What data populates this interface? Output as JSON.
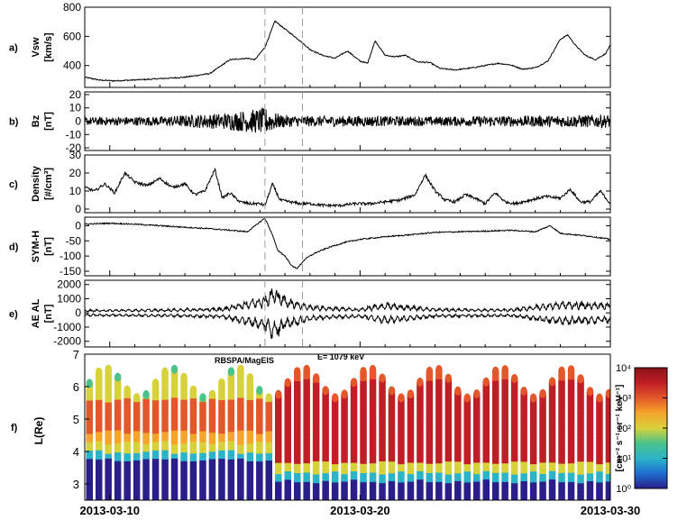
{
  "chart_data": [
    {
      "type": "line",
      "panel_label": "a)",
      "ylabel": [
        "Vsw",
        "[km/s]"
      ],
      "ylim": [
        250,
        800
      ],
      "yticks": [
        400,
        600,
        800
      ],
      "x": [
        9.0,
        9.6,
        10.2,
        11.5,
        13.0,
        14.0,
        14.8,
        15.5,
        15.8,
        16.2,
        16.6,
        17.0,
        17.3,
        17.6,
        18.0,
        18.5,
        19.0,
        19.5,
        20.0,
        20.3,
        20.6,
        21.0,
        21.4,
        21.8,
        22.3,
        22.8,
        23.2,
        23.8,
        24.5,
        25.0,
        25.5,
        26.0,
        26.5,
        27.0,
        27.5,
        28.0,
        28.3,
        28.6,
        29.0,
        29.4,
        29.8,
        30.0
      ],
      "values": [
        320,
        300,
        295,
        305,
        320,
        345,
        440,
        450,
        440,
        525,
        705,
        650,
        610,
        570,
        510,
        470,
        450,
        500,
        430,
        415,
        570,
        470,
        460,
        470,
        425,
        420,
        380,
        370,
        385,
        400,
        415,
        405,
        375,
        385,
        430,
        580,
        610,
        540,
        470,
        440,
        480,
        540
      ]
    },
    {
      "type": "line",
      "panel_label": "b)",
      "ylabel": [
        "Bz",
        "[nT]"
      ],
      "ylim": [
        -22,
        22
      ],
      "yticks": [
        -20,
        -10,
        0,
        10,
        20
      ],
      "series_profile": {
        "x": [
          9,
          12,
          14.5,
          16.2,
          16.8,
          17.5,
          20,
          23,
          26,
          30
        ],
        "amplitude": [
          3,
          3.5,
          6,
          10,
          5,
          4,
          4,
          3.5,
          4,
          5
        ]
      }
    },
    {
      "type": "line",
      "panel_label": "c)",
      "ylabel": [
        "Density",
        "[#/cm³]"
      ],
      "ylim": [
        -2,
        30
      ],
      "yticks": [
        0,
        10,
        20,
        30
      ],
      "x": [
        9.0,
        9.4,
        9.8,
        10.2,
        10.6,
        11.0,
        11.5,
        12.0,
        12.5,
        13.0,
        13.4,
        13.8,
        14.2,
        14.5,
        14.8,
        15.2,
        15.6,
        16.0,
        16.2,
        16.5,
        16.8,
        17.2,
        17.6,
        18.0,
        18.6,
        19.2,
        19.8,
        20.4,
        21.0,
        21.6,
        22.2,
        22.6,
        23.0,
        23.4,
        23.8,
        24.2,
        24.6,
        25.0,
        25.4,
        25.8,
        26.2,
        26.8,
        27.4,
        28.0,
        28.4,
        28.8,
        29.2,
        29.6,
        30.0
      ],
      "values": [
        12,
        10,
        14,
        9,
        20,
        15,
        13,
        17,
        12,
        14,
        8,
        10,
        22,
        6,
        9,
        4,
        3,
        3,
        2,
        14,
        5,
        4,
        3,
        3,
        2,
        2,
        3,
        3,
        4,
        5,
        8,
        19,
        10,
        5,
        4,
        8,
        6,
        3,
        9,
        4,
        3,
        5,
        7,
        6,
        11,
        4,
        4,
        10,
        3
      ]
    },
    {
      "type": "line",
      "panel_label": "d)",
      "ylabel": [
        "SYM-H",
        "[nT]"
      ],
      "ylim": [
        -165,
        28
      ],
      "yticks": [
        -150,
        -100,
        -50,
        0
      ],
      "x": [
        9.0,
        10.0,
        11.0,
        12.0,
        13.0,
        14.0,
        14.8,
        15.5,
        16.2,
        16.5,
        16.7,
        17.0,
        17.3,
        17.5,
        17.8,
        18.2,
        18.8,
        19.4,
        20.0,
        20.6,
        21.2,
        22.0,
        23.0,
        24.0,
        25.0,
        26.0,
        27.0,
        27.6,
        28.0,
        28.6,
        29.2,
        29.6,
        30.0
      ],
      "values": [
        5,
        8,
        5,
        0,
        -5,
        -10,
        -15,
        -20,
        25,
        -30,
        -80,
        -100,
        -135,
        -140,
        -110,
        -90,
        -70,
        -55,
        -45,
        -40,
        -35,
        -30,
        -22,
        -20,
        -18,
        -15,
        -20,
        0,
        -25,
        -30,
        -35,
        -40,
        -45
      ]
    },
    {
      "type": "line",
      "panel_label": "e)",
      "ylabel": [
        "AE AL",
        "[nT]"
      ],
      "ylim": [
        -2400,
        2300
      ],
      "yticks": [
        -2000,
        -1000,
        0,
        1000,
        2000
      ],
      "series": [
        {
          "name": "AE"
        },
        {
          "name": "AL"
        }
      ],
      "series_profile": {
        "x": [
          9,
          12,
          14.5,
          16.2,
          16.6,
          17.0,
          18.0,
          20.0,
          21.0,
          23.0,
          26.0,
          28.0,
          30.0
        ],
        "amplitude": [
          250,
          300,
          400,
          1400,
          2100,
          1300,
          600,
          350,
          800,
          350,
          300,
          900,
          800
        ]
      }
    },
    {
      "type": "heatmap",
      "panel_label": "f)",
      "ylabel": "L(Re)",
      "ylim": [
        2.5,
        7
      ],
      "yticks": [
        3,
        4,
        5,
        6,
        7
      ],
      "xlim": [
        "2013-03-09",
        "2013-03-30"
      ],
      "xticks": [
        "2013-03-10",
        "2013-03-20",
        "2013-03-30"
      ],
      "annotations": [
        "RBSPA/MagEIS",
        "E= 1079 keV"
      ],
      "passes_per_day": 2.65,
      "colorbar": {
        "label": "[cm⁻² s⁻¹ sr⁻¹ keV⁻¹]",
        "ticks": [
          "10⁰",
          "10¹",
          "10²",
          "10³",
          "10⁴"
        ],
        "colors": [
          "#2a1f8a",
          "#1f6fd0",
          "#2bb4c8",
          "#4cc38a",
          "#d8d23a",
          "#f4a52a",
          "#e4572a",
          "#c01e26",
          "#8a1218"
        ]
      }
    }
  ]
}
